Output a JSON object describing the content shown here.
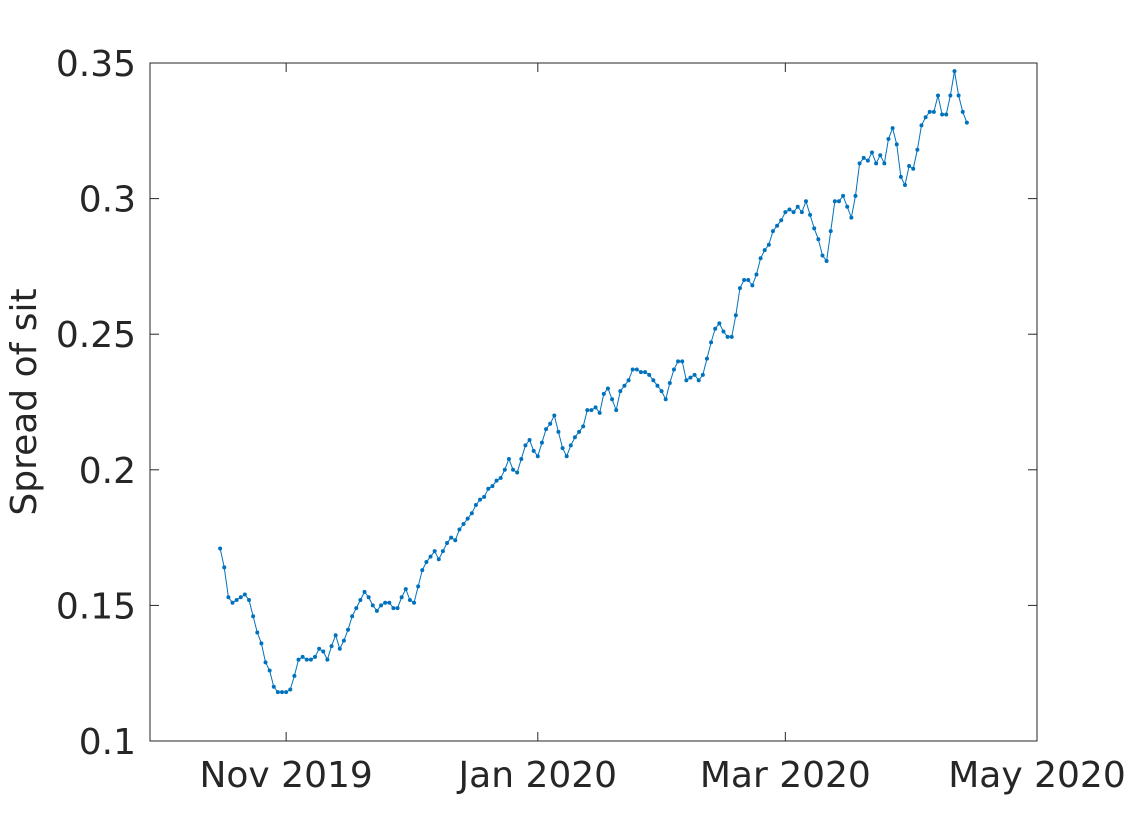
{
  "chart_data": {
    "type": "line",
    "title": "",
    "xlabel": "",
    "ylabel": "Spread of sit",
    "xlim": [
      "2019-09-29",
      "2020-05-01"
    ],
    "ylim": [
      0.1,
      0.35
    ],
    "x_ticks": [
      "2019-11-01",
      "2020-01-01",
      "2020-03-01",
      "2020-05-01"
    ],
    "x_tick_labels": [
      "Nov 2019",
      "Jan 2020",
      "Mar 2020",
      "May 2020"
    ],
    "y_ticks": [
      0.1,
      0.15,
      0.2,
      0.25,
      0.3,
      0.35
    ],
    "y_tick_labels": [
      "0.1",
      "0.15",
      "0.2",
      "0.25",
      "0.3",
      "0.35"
    ],
    "grid": false,
    "legend": "none",
    "colors": {
      "line": "#0072bd",
      "axis": "#262626"
    },
    "series": [
      {
        "start": "2019-10-16",
        "step_days": 1,
        "values": [
          0.171,
          0.164,
          0.153,
          0.151,
          0.152,
          0.153,
          0.154,
          0.152,
          0.146,
          0.14,
          0.136,
          0.129,
          0.126,
          0.12,
          0.118,
          0.118,
          0.118,
          0.119,
          0.124,
          0.13,
          0.131,
          0.13,
          0.13,
          0.131,
          0.134,
          0.133,
          0.13,
          0.135,
          0.139,
          0.134,
          0.137,
          0.141,
          0.146,
          0.149,
          0.152,
          0.155,
          0.153,
          0.15,
          0.148,
          0.15,
          0.151,
          0.151,
          0.149,
          0.149,
          0.153,
          0.156,
          0.152,
          0.151,
          0.157,
          0.163,
          0.166,
          0.168,
          0.17,
          0.167,
          0.17,
          0.173,
          0.175,
          0.174,
          0.178,
          0.18,
          0.182,
          0.184,
          0.187,
          0.189,
          0.19,
          0.193,
          0.194,
          0.196,
          0.197,
          0.2,
          0.204,
          0.2,
          0.199,
          0.204,
          0.209,
          0.211,
          0.207,
          0.205,
          0.21,
          0.215,
          0.217,
          0.22,
          0.214,
          0.208,
          0.205,
          0.209,
          0.212,
          0.214,
          0.216,
          0.222,
          0.222,
          0.223,
          0.221,
          0.228,
          0.23,
          0.226,
          0.222,
          0.229,
          0.231,
          0.233,
          0.237,
          0.237,
          0.236,
          0.236,
          0.235,
          0.233,
          0.231,
          0.229,
          0.226,
          0.232,
          0.237,
          0.24,
          0.24,
          0.233,
          0.234,
          0.235,
          0.233,
          0.235,
          0.241,
          0.247,
          0.252,
          0.254,
          0.251,
          0.249,
          0.249,
          0.257,
          0.267,
          0.27,
          0.27,
          0.268,
          0.272,
          0.278,
          0.281,
          0.283,
          0.288,
          0.29,
          0.292,
          0.295,
          0.296,
          0.295,
          0.297,
          0.295,
          0.299,
          0.294,
          0.289,
          0.285,
          0.279,
          0.277,
          0.288,
          0.299,
          0.299,
          0.301,
          0.297,
          0.293,
          0.301,
          0.313,
          0.315,
          0.314,
          0.317,
          0.313,
          0.316,
          0.313,
          0.322,
          0.326,
          0.32,
          0.308,
          0.305,
          0.312,
          0.311,
          0.318,
          0.327,
          0.33,
          0.332,
          0.332,
          0.338,
          0.331,
          0.331,
          0.338,
          0.347,
          0.338,
          0.332,
          0.328
        ]
      }
    ]
  }
}
